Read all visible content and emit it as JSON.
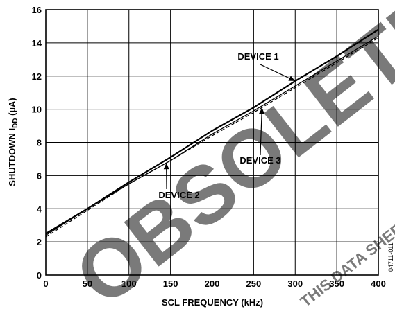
{
  "chart_data": {
    "type": "line",
    "xlabel": "SCL FREQUENCY (kHz)",
    "ylabel_main": "SHUTDOWN I",
    "ylabel_sub": "DD",
    "ylabel_unit": " (µA)",
    "xlim": [
      0,
      400
    ],
    "ylim": [
      0,
      16
    ],
    "xticks": [
      0,
      50,
      100,
      150,
      200,
      250,
      300,
      350,
      400
    ],
    "yticks": [
      0,
      2,
      4,
      6,
      8,
      10,
      12,
      14,
      16
    ],
    "grid": true,
    "series": [
      {
        "name": "DEVICE 1",
        "style": "solid",
        "x": [
          0,
          50,
          100,
          150,
          200,
          250,
          300,
          350,
          400
        ],
        "y": [
          2.5,
          4.0,
          5.6,
          7.1,
          8.7,
          10.1,
          11.7,
          13.2,
          14.8
        ]
      },
      {
        "name": "DEVICE 2",
        "style": "solid-thin",
        "x": [
          0,
          50,
          100,
          150,
          200,
          250,
          300,
          350,
          400
        ],
        "y": [
          2.4,
          4.0,
          5.5,
          6.9,
          8.5,
          9.9,
          11.4,
          12.9,
          14.4
        ]
      },
      {
        "name": "DEVICE 3",
        "style": "dashed",
        "x": [
          0,
          50,
          100,
          150,
          200,
          250,
          300,
          350,
          400
        ],
        "y": [
          2.3,
          3.9,
          5.5,
          6.9,
          8.4,
          9.8,
          11.3,
          12.8,
          14.3
        ]
      }
    ],
    "annotations": [
      {
        "text": "DEVICE 1",
        "series": "DEVICE 1"
      },
      {
        "text": "DEVICE 3",
        "series": "DEVICE 3"
      },
      {
        "text": "DEVICE 2",
        "series": "DEVICE 2"
      }
    ]
  },
  "figure_id": "04711-011",
  "watermark": {
    "big": "OBSOLETE",
    "small": "THIS DATA SHEET"
  },
  "colors": {
    "line": "#000000",
    "grid": "#000000",
    "watermark": "#7a7a7a"
  }
}
